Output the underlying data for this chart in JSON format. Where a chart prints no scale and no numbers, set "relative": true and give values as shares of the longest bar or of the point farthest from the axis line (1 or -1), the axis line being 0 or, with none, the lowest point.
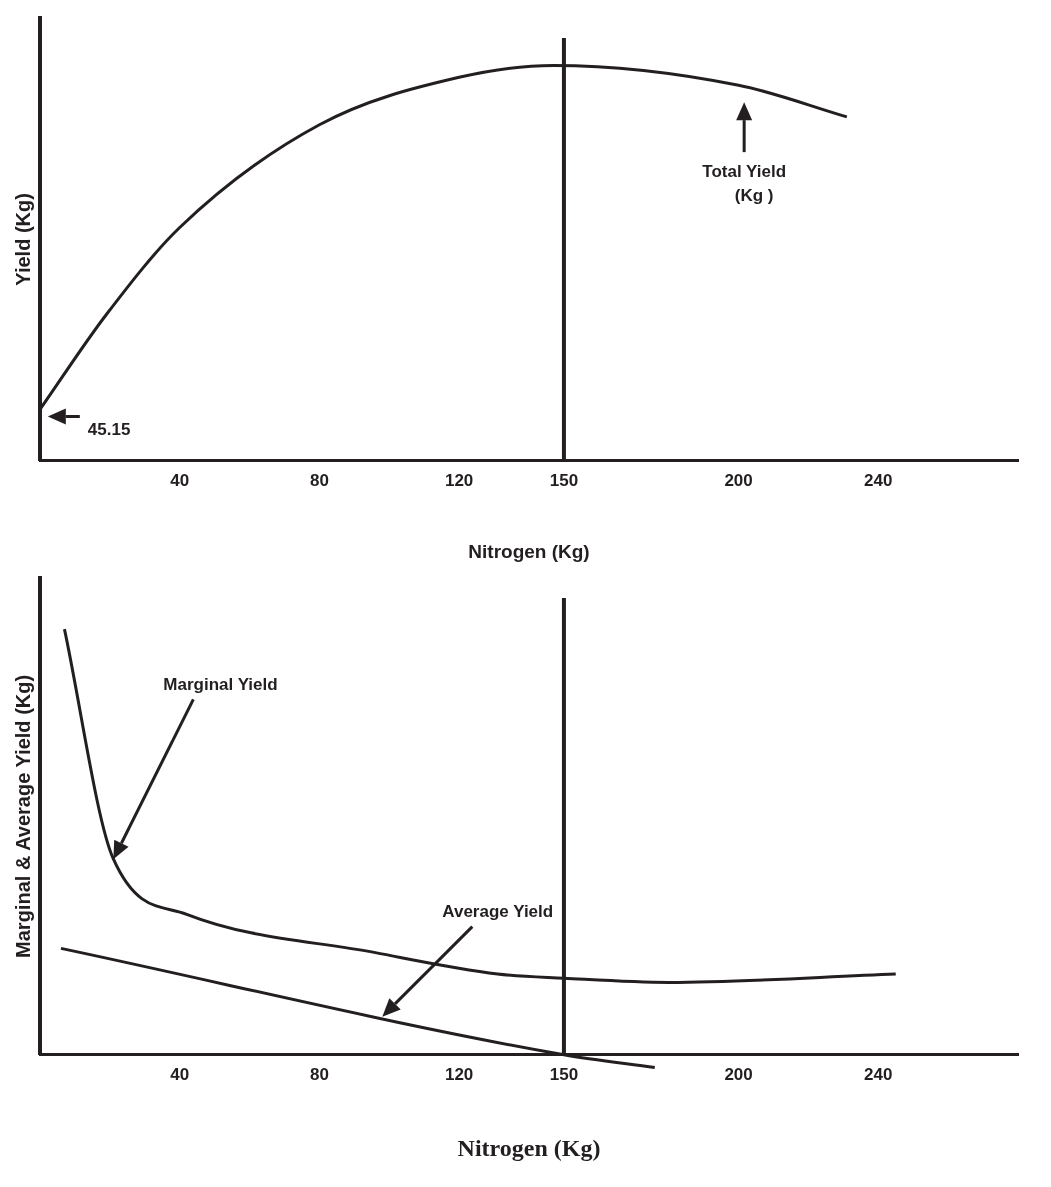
{
  "chart_data": [
    {
      "type": "line",
      "xlabel": "Nitrogen (Kg)",
      "ylabel": "Yield (Kg)",
      "relative": true,
      "xlim": [
        0,
        280
      ],
      "xticks": [
        40,
        80,
        120,
        150,
        200,
        240
      ],
      "marker": "none",
      "legend": false,
      "grid": false,
      "series": [
        {
          "color": "#231f20",
          "x": [
            0,
            19,
            40,
            80,
            120,
            147,
            200,
            231
          ],
          "values": [
            0.13,
            0.37,
            0.59,
            0.85,
            0.97,
            1,
            0.95,
            0.87
          ]
        }
      ],
      "ref_lines": [
        {
          "axis": "x",
          "value": 150,
          "color": "#231f20"
        }
      ],
      "annotations": [
        "45.15",
        "Total Yield\n(Kg )"
      ]
    },
    {
      "type": "line",
      "xlabel": "Nitrogen (Kg)",
      "ylabel": "Marginal & Average Yield (Kg)",
      "relative": true,
      "xlim": [
        0,
        280
      ],
      "xticks": [
        40,
        80,
        120,
        150,
        200,
        240
      ],
      "marker": "none",
      "legend": false,
      "grid": false,
      "series": [
        {
          "color": "#231f20",
          "x": [
            7,
            21,
            42,
            96,
            131,
            150,
            180,
            245
          ],
          "values": [
            1,
            0.46,
            0.33,
            0.24,
            0.19,
            0.18,
            0.17,
            0.19
          ]
        },
        {
          "color": "#231f20",
          "x": [
            6,
            150,
            176
          ],
          "values": [
            0.25,
            0,
            -0.03
          ]
        }
      ],
      "ref_lines": [
        {
          "axis": "x",
          "value": 150,
          "color": "#231f20"
        }
      ],
      "annotations": [
        "Marginal Yield",
        "Average Yield"
      ]
    }
  ]
}
